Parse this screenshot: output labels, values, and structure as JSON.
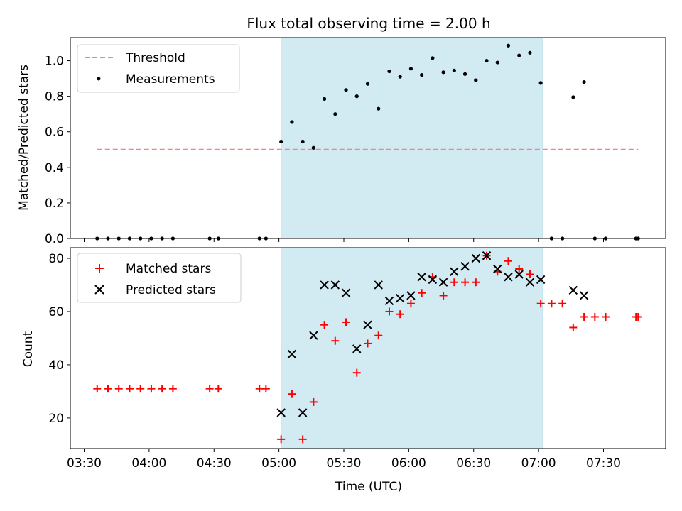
{
  "chart_data": [
    {
      "type": "scatter",
      "title": "Flux total observing time = 2.00 h",
      "xlabel": "",
      "ylabel": "Matched/Predicted stars",
      "ylim": [
        0,
        1.13
      ],
      "yticks": [
        "0.0",
        "0.2",
        "0.4",
        "0.6",
        "0.8",
        "1.0"
      ],
      "legend_position": "top-left",
      "shaded_interval": {
        "x0": "05:01",
        "x1": "07:02",
        "color": "#add8e6"
      },
      "threshold": {
        "name": "Threshold",
        "value": 0.5,
        "x0": "03:36",
        "x1": "07:46",
        "color": "#ff7f7f"
      },
      "series": [
        {
          "name": "Measurements",
          "color": "#000000",
          "marker": "dot",
          "points": [
            [
              "03:36",
              0.0
            ],
            [
              "03:41",
              0.0
            ],
            [
              "03:46",
              0.0
            ],
            [
              "03:51",
              0.0
            ],
            [
              "03:56",
              0.0
            ],
            [
              "04:01",
              0.0
            ],
            [
              "04:06",
              0.0
            ],
            [
              "04:11",
              0.0
            ],
            [
              "04:28",
              0.0
            ],
            [
              "04:32",
              0.0
            ],
            [
              "04:51",
              0.0
            ],
            [
              "04:54",
              0.0
            ],
            [
              "05:01",
              0.545
            ],
            [
              "05:06",
              0.655
            ],
            [
              "05:11",
              0.545
            ],
            [
              "05:16",
              0.51
            ],
            [
              "05:21",
              0.785
            ],
            [
              "05:26",
              0.7
            ],
            [
              "05:31",
              0.835
            ],
            [
              "05:36",
              0.8
            ],
            [
              "05:41",
              0.87
            ],
            [
              "05:46",
              0.73
            ],
            [
              "05:51",
              0.94
            ],
            [
              "05:56",
              0.91
            ],
            [
              "06:01",
              0.955
            ],
            [
              "06:06",
              0.92
            ],
            [
              "06:11",
              1.015
            ],
            [
              "06:16",
              0.935
            ],
            [
              "06:21",
              0.945
            ],
            [
              "06:26",
              0.925
            ],
            [
              "06:31",
              0.89
            ],
            [
              "06:36",
              1.0
            ],
            [
              "06:41",
              0.99
            ],
            [
              "06:46",
              1.085
            ],
            [
              "06:51",
              1.03
            ],
            [
              "06:56",
              1.045
            ],
            [
              "07:01",
              0.875
            ],
            [
              "07:06",
              0.0
            ],
            [
              "07:11",
              0.0
            ],
            [
              "07:16",
              0.795
            ],
            [
              "07:21",
              0.88
            ],
            [
              "07:26",
              0.0
            ],
            [
              "07:31",
              0.0
            ],
            [
              "07:45",
              0.0
            ],
            [
              "07:46",
              0.0
            ]
          ]
        }
      ]
    },
    {
      "type": "scatter",
      "title": "",
      "xlabel": "Time (UTC)",
      "ylabel": "Count",
      "ylim": [
        8.5,
        84
      ],
      "yticks": [
        "20",
        "40",
        "60",
        "80"
      ],
      "xticks": [
        "03:30",
        "04:00",
        "04:30",
        "05:00",
        "05:30",
        "06:00",
        "06:30",
        "07:00",
        "07:30"
      ],
      "legend_position": "top-left",
      "shaded_interval": {
        "x0": "05:01",
        "x1": "07:02",
        "color": "#add8e6"
      },
      "series": [
        {
          "name": "Matched stars",
          "color": "#ff0000",
          "marker": "plus",
          "points": [
            [
              "03:36",
              31
            ],
            [
              "03:41",
              31
            ],
            [
              "03:46",
              31
            ],
            [
              "03:51",
              31
            ],
            [
              "03:56",
              31
            ],
            [
              "04:01",
              31
            ],
            [
              "04:06",
              31
            ],
            [
              "04:11",
              31
            ],
            [
              "04:28",
              31
            ],
            [
              "04:32",
              31
            ],
            [
              "04:51",
              31
            ],
            [
              "04:54",
              31
            ],
            [
              "05:01",
              12
            ],
            [
              "05:06",
              29
            ],
            [
              "05:11",
              12
            ],
            [
              "05:16",
              26
            ],
            [
              "05:21",
              55
            ],
            [
              "05:26",
              49
            ],
            [
              "05:31",
              56
            ],
            [
              "05:36",
              37
            ],
            [
              "05:41",
              48
            ],
            [
              "05:46",
              51
            ],
            [
              "05:51",
              60
            ],
            [
              "05:56",
              59
            ],
            [
              "06:01",
              63
            ],
            [
              "06:06",
              67
            ],
            [
              "06:11",
              73
            ],
            [
              "06:16",
              66
            ],
            [
              "06:21",
              71
            ],
            [
              "06:26",
              71
            ],
            [
              "06:31",
              71
            ],
            [
              "06:36",
              81
            ],
            [
              "06:41",
              75
            ],
            [
              "06:46",
              79
            ],
            [
              "06:51",
              76
            ],
            [
              "06:56",
              74
            ],
            [
              "07:01",
              63
            ],
            [
              "07:06",
              63
            ],
            [
              "07:11",
              63
            ],
            [
              "07:16",
              54
            ],
            [
              "07:21",
              58
            ],
            [
              "07:26",
              58
            ],
            [
              "07:31",
              58
            ],
            [
              "07:45",
              58
            ],
            [
              "07:46",
              58
            ]
          ]
        },
        {
          "name": "Predicted stars",
          "color": "#000000",
          "marker": "x",
          "points": [
            [
              "05:01",
              22
            ],
            [
              "05:06",
              44
            ],
            [
              "05:11",
              22
            ],
            [
              "05:16",
              51
            ],
            [
              "05:21",
              70
            ],
            [
              "05:26",
              70
            ],
            [
              "05:31",
              67
            ],
            [
              "05:36",
              46
            ],
            [
              "05:41",
              55
            ],
            [
              "05:46",
              70
            ],
            [
              "05:51",
              64
            ],
            [
              "05:56",
              65
            ],
            [
              "06:01",
              66
            ],
            [
              "06:06",
              73
            ],
            [
              "06:11",
              72
            ],
            [
              "06:16",
              71
            ],
            [
              "06:21",
              75
            ],
            [
              "06:26",
              77
            ],
            [
              "06:31",
              80
            ],
            [
              "06:36",
              81
            ],
            [
              "06:41",
              76
            ],
            [
              "06:46",
              73
            ],
            [
              "06:51",
              74
            ],
            [
              "06:56",
              71
            ],
            [
              "07:01",
              72
            ],
            [
              "07:16",
              68
            ],
            [
              "07:21",
              66
            ]
          ]
        }
      ]
    }
  ]
}
